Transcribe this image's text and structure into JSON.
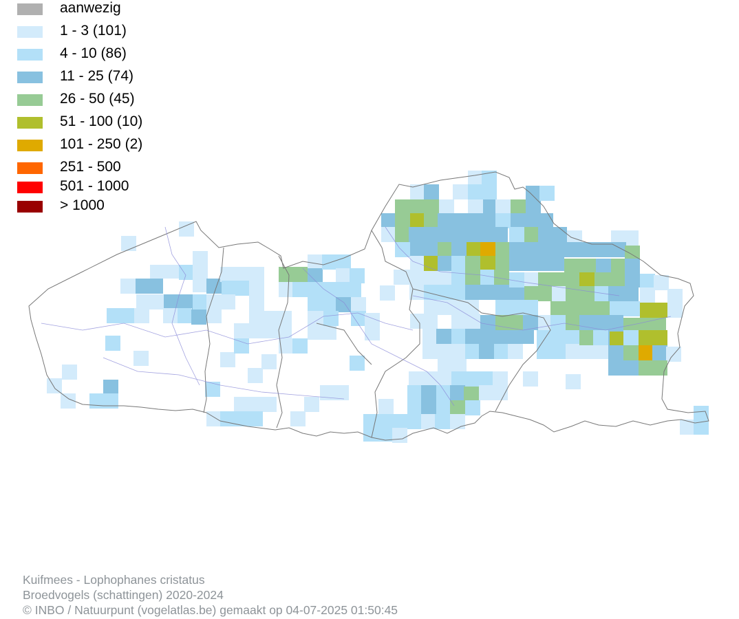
{
  "legend": {
    "items": [
      {
        "label": "aanwezig",
        "color": "#b0b0b0"
      },
      {
        "label": "1 - 3 (101)",
        "color": "#d3ebfb"
      },
      {
        "label": "4 - 10 (86)",
        "color": "#b3e0f8"
      },
      {
        "label": "11 - 25 (74)",
        "color": "#88c1e0"
      },
      {
        "label": "26 - 50 (45)",
        "color": "#97cb95"
      },
      {
        "label": "51 - 100 (10)",
        "color": "#b0bf2d"
      },
      {
        "label": "101 - 250 (2)",
        "color": "#dfaa00"
      },
      {
        "label": "251 - 500",
        "color": "#ff6600"
      },
      {
        "label": "501 - 1000",
        "color": "#ff0000"
      },
      {
        "label": "> 1000",
        "color": "#990000"
      }
    ]
  },
  "footer": {
    "species": "Kuifmees - Lophophanes cristatus",
    "dataset": "Broedvogels (schattingen) 2020-2024",
    "credit": "© INBO / Natuurpunt (vogelatlas.be) gemaakt op 04-07-2025 01:50:45"
  }
}
